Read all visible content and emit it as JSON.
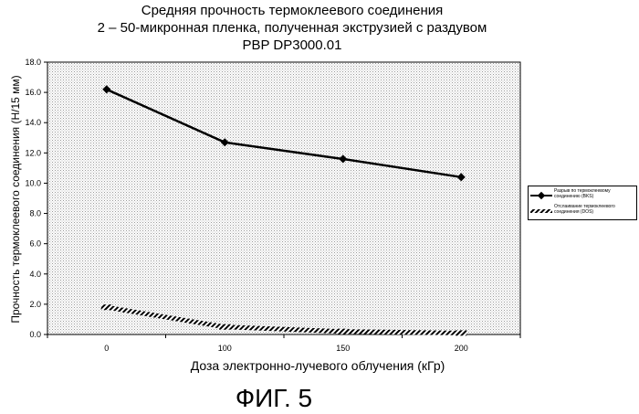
{
  "chart_data": {
    "type": "line",
    "title": "Средняя прочность термоклеевого соединения",
    "subtitle_1": "2 – 50-микронная пленка, полученная экструзией с раздувом",
    "subtitle_2": "PBP DP3000.01",
    "xlabel": "Доза электронно-лучевого облучения (кГр)",
    "ylabel": "Прочность термоклеевого соединения (Н/15 мм)",
    "categories": [
      "0",
      "100",
      "150",
      "200"
    ],
    "ylim": [
      0,
      18
    ],
    "yticks": [
      "0.0",
      "2.0",
      "4.0",
      "6.0",
      "8.0",
      "10.0",
      "12.0",
      "14.0",
      "16.0",
      "18.0"
    ],
    "series": [
      {
        "name": "Разрыв по термоклеевому соединению (BKS)",
        "values": [
          16.2,
          12.7,
          11.6,
          10.4
        ],
        "color": "#000000",
        "style": "solid-diamond"
      },
      {
        "name": "Отслаивание термоклеевого соединения (DOS)",
        "values": [
          1.8,
          0.5,
          0.2,
          0.1
        ],
        "color": "#000000",
        "style": "hatched"
      }
    ],
    "grid": false,
    "legend_position": "right"
  },
  "figure_label": "ФИГ. 5"
}
